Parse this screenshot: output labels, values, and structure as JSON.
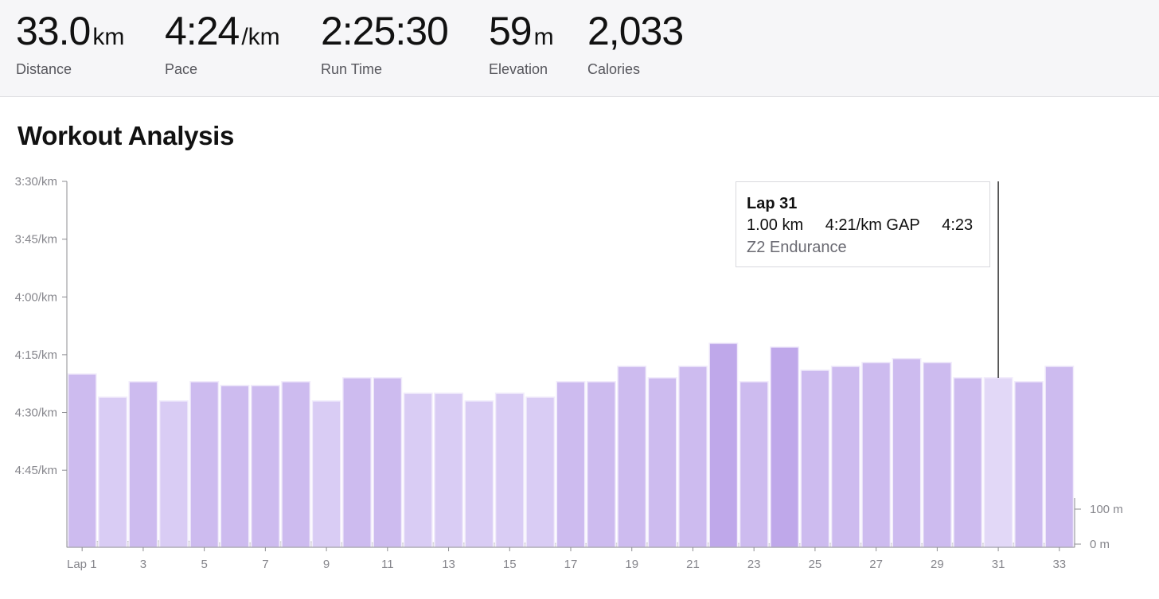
{
  "stats": [
    {
      "value": "33.0",
      "unit": "km",
      "label": "Distance"
    },
    {
      "value": "4:24",
      "unit": "/km",
      "label": "Pace"
    },
    {
      "value": "2:25:30",
      "unit": "",
      "label": "Run Time"
    },
    {
      "value": "59",
      "unit": "m",
      "label": "Elevation"
    },
    {
      "value": "2,033",
      "unit": "",
      "label": "Calories"
    }
  ],
  "section_title": "Workout Analysis",
  "tooltip": {
    "title": "Lap 31",
    "distance": "1.00 km",
    "gap": "4:21/km GAP",
    "time": "4:23",
    "zone": "Z2 Endurance"
  },
  "colors": {
    "bar": "#cdbbef",
    "bar_dark": "#bfa8ea",
    "bar_light": "#d9ccf4",
    "bar_selected": "#e2d8f7",
    "elevation": "#dcdcde"
  },
  "chart_data": {
    "type": "bar",
    "categories": [
      "Lap 1",
      "2",
      "3",
      "4",
      "5",
      "6",
      "7",
      "8",
      "9",
      "10",
      "11",
      "12",
      "13",
      "14",
      "15",
      "16",
      "17",
      "18",
      "19",
      "20",
      "21",
      "22",
      "23",
      "24",
      "25",
      "26",
      "27",
      "28",
      "29",
      "30",
      "31",
      "32",
      "33"
    ],
    "x_tick_labels": [
      "Lap 1",
      "3",
      "5",
      "7",
      "9",
      "11",
      "13",
      "15",
      "17",
      "19",
      "21",
      "23",
      "25",
      "27",
      "29",
      "31",
      "33"
    ],
    "series": [
      {
        "unit": "sec/km",
        "values": [
          260,
          266,
          262,
          267,
          262,
          263,
          263,
          262,
          267,
          261,
          261,
          265,
          265,
          267,
          265,
          266,
          262,
          262,
          258,
          261,
          258,
          252,
          262,
          253,
          259,
          258,
          257,
          256,
          257,
          261,
          261,
          262,
          258
        ]
      }
    ],
    "pace_axis": {
      "ticks": [
        "3:30/km",
        "3:45/km",
        "4:00/km",
        "4:15/km",
        "4:30/km",
        "4:45/km"
      ],
      "tick_values": [
        210,
        225,
        240,
        255,
        270,
        285
      ],
      "range": [
        210,
        305
      ]
    },
    "elevation_axis": {
      "ticks": [
        "100 m",
        "0 m"
      ],
      "tick_values": [
        100,
        0
      ],
      "range": [
        0,
        100
      ]
    },
    "elevation_profile": [
      7,
      8,
      8,
      9,
      8,
      8,
      9,
      10,
      9,
      7,
      4,
      3,
      3,
      4,
      5,
      8,
      9,
      6,
      4,
      4,
      4,
      4,
      3,
      3,
      4,
      4,
      3,
      3,
      4,
      3,
      3,
      3,
      3,
      2,
      2,
      1,
      2,
      2,
      3,
      2,
      4,
      3,
      4,
      4,
      3,
      3,
      2,
      2,
      1,
      2,
      1,
      2,
      2,
      3,
      2,
      3,
      2,
      2,
      1,
      2,
      2,
      3,
      2,
      2,
      2,
      3,
      2,
      2,
      3,
      2
    ],
    "selected_lap": 31,
    "grid": false
  }
}
